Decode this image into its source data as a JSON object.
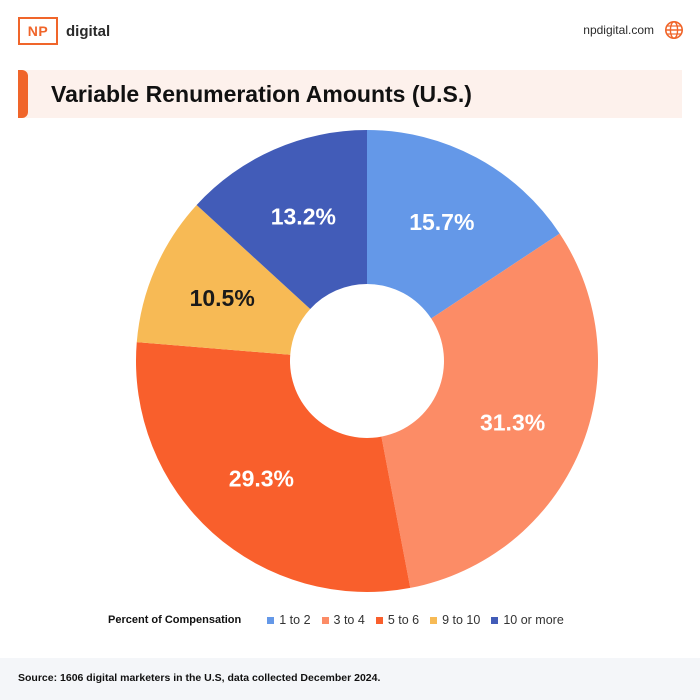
{
  "brand": {
    "logo_box": "NP",
    "logo_word": "digital",
    "website": "npdigital.com",
    "accent_color": "#F0652A"
  },
  "title": "Variable Renumeration Amounts (U.S.)",
  "chart_data": {
    "type": "pie",
    "style": "donut",
    "title": "Variable Renumeration Amounts (U.S.)",
    "legend_title": "Percent of Compensation",
    "legend_placement": "bottom",
    "unit": "%",
    "categories": [
      "1 to 2",
      "3 to 4",
      "5 to 6",
      "9 to 10",
      "10 or more"
    ],
    "values": [
      15.7,
      31.3,
      29.3,
      10.5,
      13.2
    ],
    "labels": [
      "15.7%",
      "31.3%",
      "29.3%",
      "10.5%",
      "13.2%"
    ],
    "colors": [
      "#6498E8",
      "#FC8C66",
      "#F95F2C",
      "#F7BA55",
      "#425CB8"
    ],
    "label_colors": [
      "#ffffff",
      "#ffffff",
      "#ffffff",
      "#1a1a1a",
      "#ffffff"
    ]
  },
  "footer": {
    "source": "Source: 1606 digital marketers in the U.S, data collected December 2024."
  }
}
